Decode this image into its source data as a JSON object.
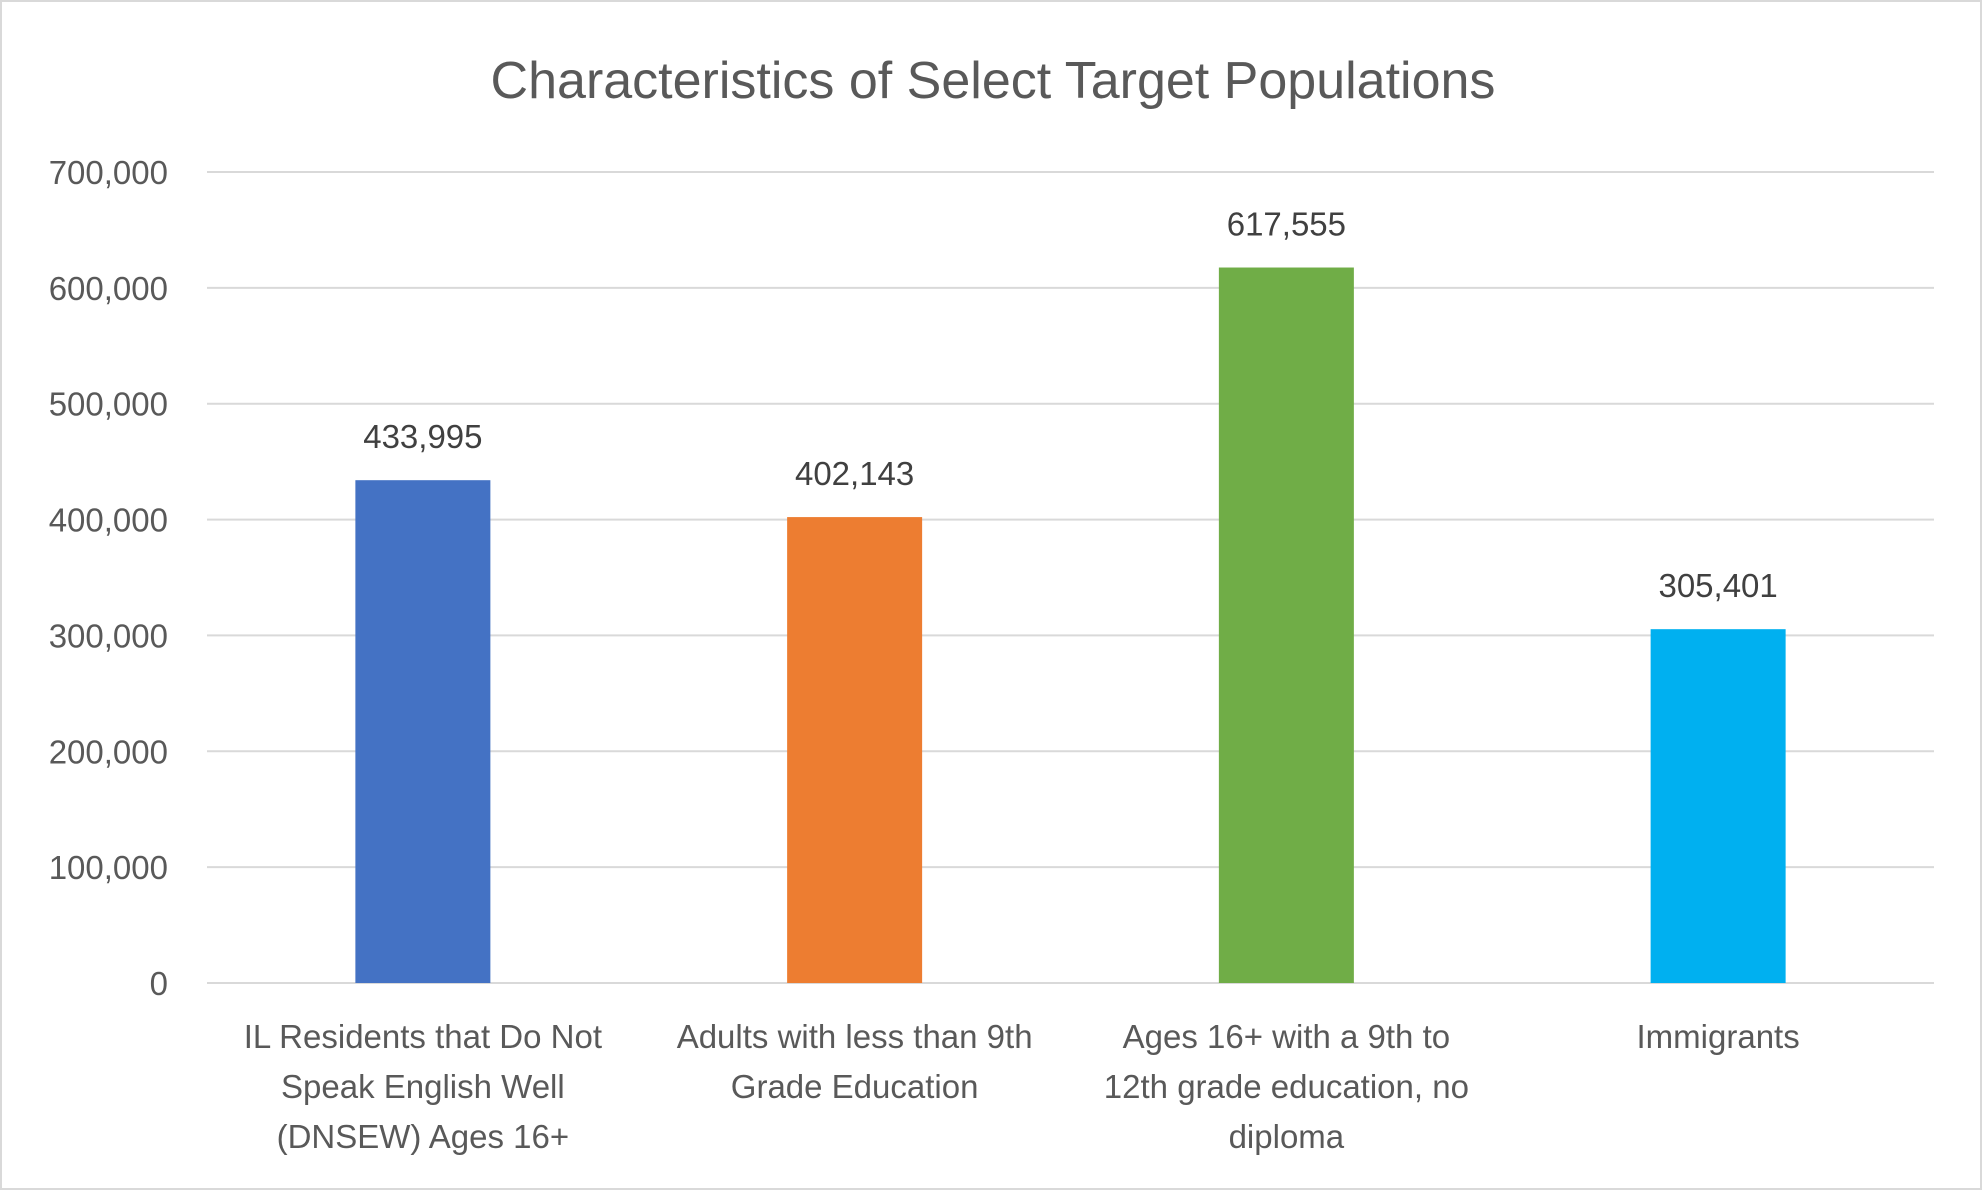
{
  "chart_data": {
    "type": "bar",
    "title": "Characteristics of Select Target Populations",
    "categories": [
      [
        "IL Residents that Do Not",
        "Speak English Well",
        "(DNSEW) Ages 16+"
      ],
      [
        "Adults with less than 9th",
        "Grade Education"
      ],
      [
        "Ages 16+ with a 9th to",
        "12th grade education, no",
        "diploma"
      ],
      [
        "Immigrants"
      ]
    ],
    "values": [
      433995,
      402143,
      617555,
      305401
    ],
    "data_labels": [
      "433,995",
      "402,143",
      "617,555",
      "305,401"
    ],
    "colors": [
      "#4472c4",
      "#ed7d31",
      "#70ad47",
      "#00b0f0"
    ],
    "ylim": [
      0,
      700000
    ],
    "yticks": [
      0,
      100000,
      200000,
      300000,
      400000,
      500000,
      600000,
      700000
    ],
    "ytick_labels": [
      "0",
      "100,000",
      "200,000",
      "300,000",
      "400,000",
      "500,000",
      "600,000",
      "700,000"
    ],
    "grid": true,
    "legend": "none",
    "xlabel": "",
    "ylabel": ""
  }
}
